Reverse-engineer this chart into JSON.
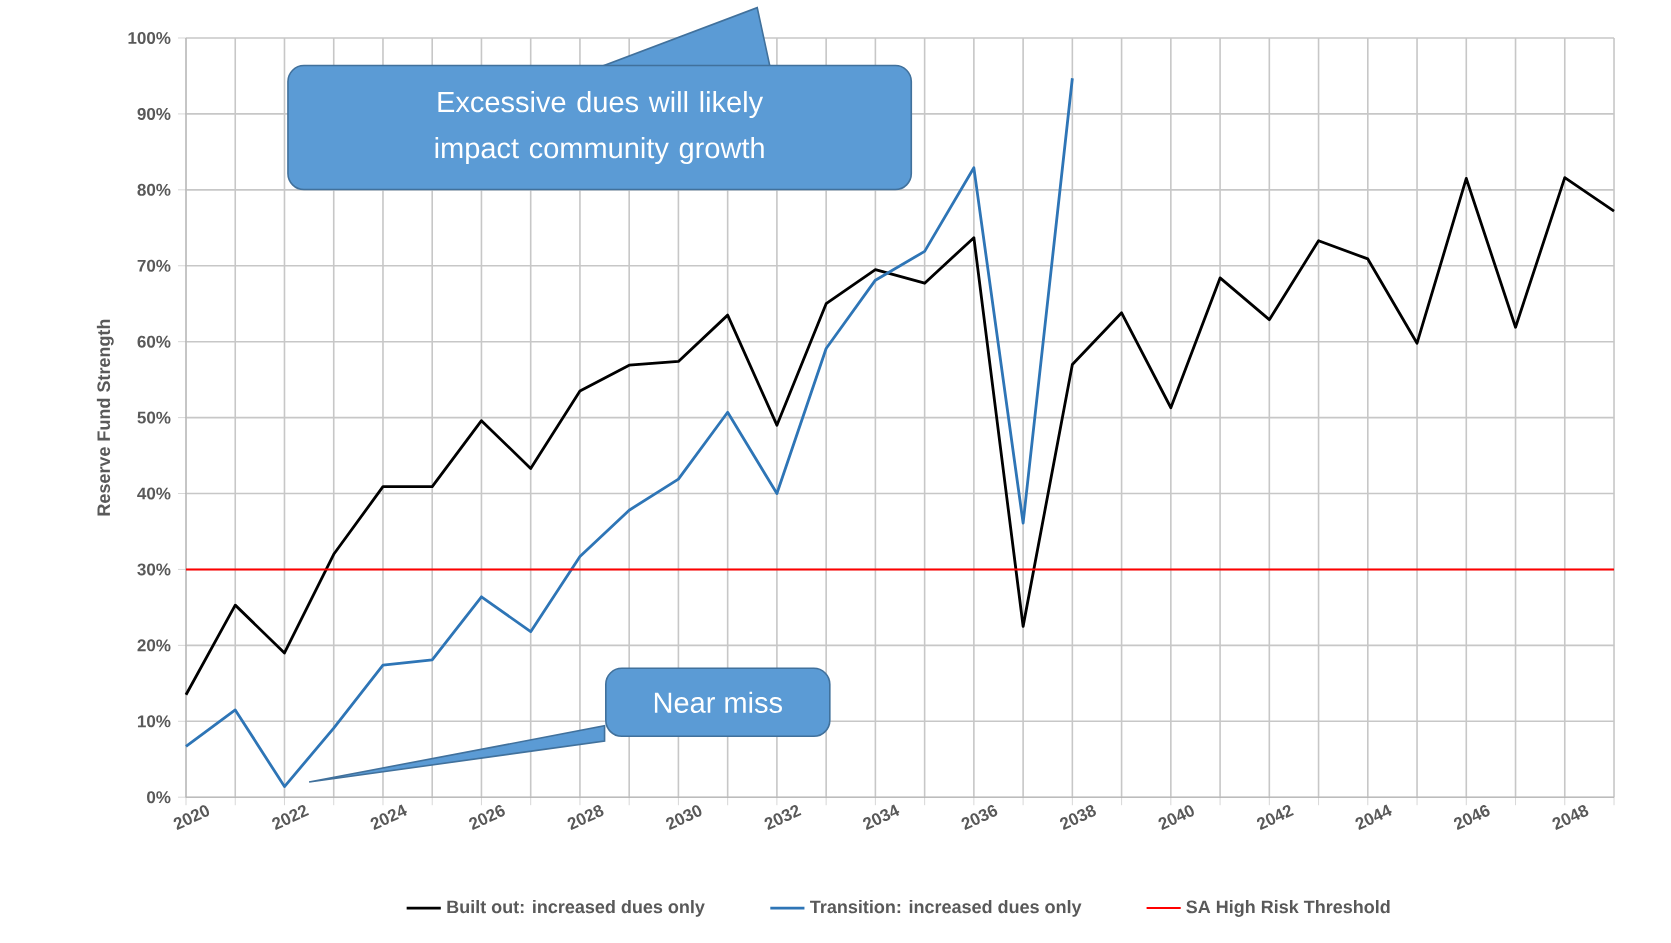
{
  "chart_data": {
    "type": "line",
    "ylabel": "Reserve Fund Strength",
    "x": [
      2020,
      2021,
      2022,
      2023,
      2024,
      2025,
      2026,
      2027,
      2028,
      2029,
      2030,
      2031,
      2032,
      2033,
      2034,
      2035,
      2036,
      2037,
      2038,
      2039,
      2040,
      2041,
      2042,
      2043,
      2044,
      2045,
      2046,
      2047,
      2048,
      2049
    ],
    "series": [
      {
        "name": "Built out: increased dues only",
        "color": "#000000",
        "values": [
          13.5,
          25.3,
          19.0,
          32.0,
          40.9,
          40.9,
          49.6,
          43.3,
          53.5,
          56.9,
          57.4,
          63.5,
          49.0,
          65.0,
          69.5,
          67.7,
          73.7,
          22.5,
          57.0,
          63.8,
          51.3,
          68.4,
          62.9,
          73.3,
          70.9,
          59.8,
          81.5,
          61.9,
          81.6,
          77.2
        ]
      },
      {
        "name": "Transition: increased dues only",
        "color": "#2e75b6",
        "values": [
          6.7,
          11.5,
          1.4,
          9.1,
          17.4,
          18.1,
          26.4,
          21.8,
          31.7,
          37.8,
          41.9,
          50.7,
          40.0,
          59.1,
          68.1,
          71.9,
          82.9,
          36.1,
          94.7,
          null,
          null,
          null,
          null,
          null,
          null,
          null,
          null,
          null,
          null,
          null
        ]
      }
    ],
    "ref_lines": [
      {
        "axis": "y",
        "value": 30,
        "label": "SA High Risk Threshold",
        "color": "#ff0000"
      }
    ],
    "annotations": [
      "Excessive dues will likely impact community growth",
      "Near miss"
    ],
    "xlim": [
      2020,
      2049
    ],
    "ylim": [
      0,
      100
    ],
    "xticks": [
      2020,
      {
        "value": 2021,
        "label": null
      },
      2022,
      {
        "value": 2023,
        "label": null
      },
      2024,
      {
        "value": 2025,
        "label": null
      },
      2026,
      {
        "value": 2027,
        "label": null
      },
      2028,
      {
        "value": 2029,
        "label": null
      },
      2030,
      {
        "value": 2031,
        "label": null
      },
      2032,
      {
        "value": 2033,
        "label": null
      },
      2034,
      {
        "value": 2035,
        "label": null
      },
      2036,
      {
        "value": 2037,
        "label": null
      },
      2038,
      {
        "value": 2039,
        "label": null
      },
      2040,
      {
        "value": 2041,
        "label": null
      },
      2042,
      {
        "value": 2043,
        "label": null
      },
      2044,
      {
        "value": 2045,
        "label": null
      },
      2046,
      {
        "value": 2047,
        "label": null
      },
      2048,
      {
        "value": 2049,
        "label": null
      }
    ],
    "yticks": [
      {
        "value": 0,
        "label": "0%"
      },
      {
        "value": 10,
        "label": "10%"
      },
      {
        "value": 20,
        "label": "20%"
      },
      {
        "value": 30,
        "label": "30%"
      },
      {
        "value": 40,
        "label": "40%"
      },
      {
        "value": 50,
        "label": "50%"
      },
      {
        "value": 60,
        "label": "60%"
      },
      {
        "value": 70,
        "label": "70%"
      },
      {
        "value": 80,
        "label": "80%"
      },
      {
        "value": 90,
        "label": "90%"
      },
      {
        "value": 100,
        "label": "100%"
      }
    ],
    "grid": true,
    "legend": "bottom",
    "marker": "none",
    "line_style": "solid"
  }
}
